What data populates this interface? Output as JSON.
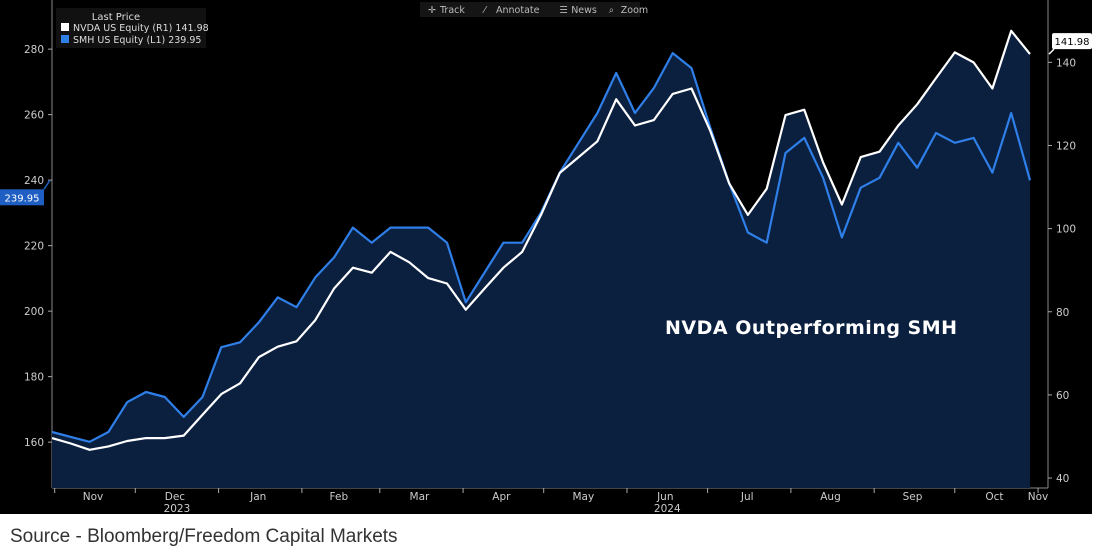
{
  "chart_data": {
    "type": "line",
    "title": "",
    "annotation": "NVDA Outperforming SMH",
    "legend": {
      "title": "Last Price",
      "placement": "top-left"
    },
    "toolbar": [
      "Track",
      "Annotate",
      "News",
      "Zoom"
    ],
    "x_start": "2023-10-31",
    "x_step_days": 7,
    "x_ticks": [
      "Nov",
      "Dec",
      "Jan",
      "Feb",
      "Mar",
      "Apr",
      "May",
      "Jun",
      "Jul",
      "Aug",
      "Sep",
      "Oct",
      "Nov"
    ],
    "year_labels": [
      {
        "label": "2023",
        "under": "Dec"
      },
      {
        "label": "2024",
        "under": "Jun"
      }
    ],
    "left_axis": {
      "ticks": [
        160,
        180,
        200,
        220,
        240,
        260,
        280
      ],
      "range": [
        146,
        295
      ]
    },
    "right_axis": {
      "ticks": [
        40,
        60,
        80,
        100,
        120,
        140
      ],
      "range": [
        37.6,
        155
      ]
    },
    "series": [
      {
        "name": "NVDA US Equity",
        "axis": "R1",
        "last": "141.98",
        "color": "#ffffff",
        "values": [
          49.6,
          48.3,
          46.8,
          47.6,
          48.9,
          49.6,
          49.6,
          50.2,
          55.2,
          60.2,
          62.8,
          69.1,
          71.6,
          72.9,
          78.0,
          85.6,
          90.6,
          89.4,
          94.4,
          91.9,
          88.1,
          86.8,
          80.5,
          85.6,
          90.6,
          94.4,
          103.3,
          113.4,
          117.2,
          121.0,
          131.1,
          124.8,
          126.1,
          132.4,
          133.7,
          123.5,
          110.9,
          103.3,
          109.6,
          127.3,
          128.6,
          115.9,
          105.8,
          117.2,
          118.5,
          124.8,
          129.9,
          136.2,
          142.4,
          140.0,
          133.7,
          147.6,
          141.98
        ]
      },
      {
        "name": "SMH US Equity",
        "axis": "L1",
        "last": "239.95",
        "color": "#2f7fe8",
        "values": [
          163.1,
          161.6,
          160.1,
          163.1,
          172.2,
          175.3,
          173.8,
          167.7,
          173.8,
          189.0,
          190.5,
          196.6,
          204.2,
          201.2,
          210.3,
          216.4,
          225.5,
          220.9,
          225.5,
          225.5,
          225.5,
          220.9,
          202.7,
          211.8,
          220.9,
          220.9,
          230.1,
          242.3,
          251.4,
          260.5,
          272.7,
          260.5,
          268.1,
          278.8,
          274.2,
          256.0,
          239.2,
          224.0,
          220.9,
          248.3,
          252.9,
          240.7,
          222.5,
          237.7,
          240.7,
          251.4,
          243.8,
          254.4,
          251.4,
          252.9,
          242.3,
          260.5,
          239.95
        ]
      }
    ],
    "fill_color": "#0b1f3f"
  },
  "source": "Source - Bloomberg/Freedom Capital Markets"
}
